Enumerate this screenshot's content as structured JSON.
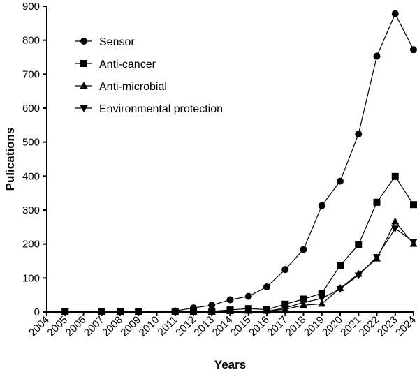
{
  "chart_data": {
    "type": "line",
    "title": "",
    "xlabel": "Years",
    "ylabel": "Pulications",
    "ylim": [
      0,
      900
    ],
    "yticks": [
      0,
      100,
      200,
      300,
      400,
      500,
      600,
      700,
      800,
      900
    ],
    "categories": [
      "2004",
      "2005",
      "2006",
      "2007",
      "2008",
      "2009",
      "2010",
      "2011",
      "2012",
      "2013",
      "2014",
      "2015",
      "2016",
      "2017",
      "2018",
      "2019",
      "2020",
      "2021",
      "2022",
      "2023",
      "2024"
    ],
    "grid": false,
    "legend_position": "top-left",
    "series": [
      {
        "name": "Sensor",
        "marker": "circle",
        "x": [
          "2005",
          "2007",
          "2008",
          "2009",
          "2011",
          "2012",
          "2013",
          "2014",
          "2015",
          "2016",
          "2017",
          "2018",
          "2019",
          "2020",
          "2021",
          "2022",
          "2023",
          "2024"
        ],
        "values": [
          0,
          0,
          0,
          0,
          3,
          12,
          20,
          36,
          46,
          74,
          125,
          184,
          313,
          385,
          524,
          753,
          878,
          772
        ]
      },
      {
        "name": "Anti-cancer",
        "marker": "square",
        "x": [
          "2005",
          "2007",
          "2008",
          "2009",
          "2011",
          "2012",
          "2013",
          "2014",
          "2015",
          "2016",
          "2017",
          "2018",
          "2019",
          "2020",
          "2021",
          "2022",
          "2023",
          "2024"
        ],
        "values": [
          0,
          0,
          0,
          0,
          0,
          2,
          2,
          6,
          10,
          7,
          23,
          38,
          55,
          137,
          198,
          323,
          399,
          316
        ]
      },
      {
        "name": "Anti-microbial",
        "marker": "triangle-up",
        "x": [
          "2005",
          "2007",
          "2008",
          "2009",
          "2011",
          "2012",
          "2013",
          "2014",
          "2015",
          "2016",
          "2017",
          "2018",
          "2019",
          "2020",
          "2021",
          "2022",
          "2023",
          "2024"
        ],
        "values": [
          0,
          0,
          0,
          0,
          0,
          0,
          0,
          2,
          3,
          3,
          8,
          20,
          24,
          70,
          112,
          157,
          266,
          200
        ]
      },
      {
        "name": "Environmental protection",
        "marker": "triangle-down",
        "x": [
          "2005",
          "2007",
          "2008",
          "2009",
          "2011",
          "2012",
          "2013",
          "2014",
          "2015",
          "2016",
          "2017",
          "2018",
          "2019",
          "2020",
          "2021",
          "2022",
          "2023",
          "2024"
        ],
        "values": [
          0,
          0,
          0,
          0,
          0,
          0,
          0,
          1,
          2,
          2,
          12,
          28,
          40,
          68,
          108,
          162,
          246,
          207
        ]
      }
    ]
  }
}
